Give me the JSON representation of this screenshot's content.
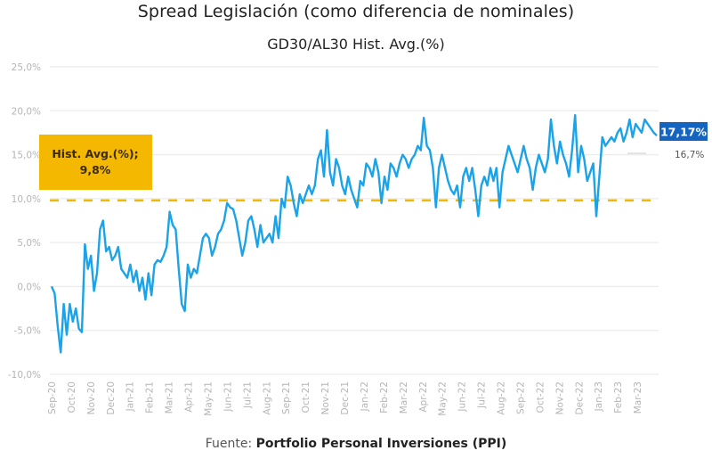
{
  "chart_data": {
    "type": "line",
    "title": "Spread Legislación (como diferencia de nominales)",
    "subtitle": "GD30/AL30 Hist. Avg.(%)",
    "source_prefix": "Fuente: ",
    "source_name": "Portfolio Personal Inversiones (PPI)",
    "xlabel": "",
    "ylabel": "",
    "ylim": [
      -10,
      25
    ],
    "yticks": [
      -10,
      -5,
      0,
      5,
      10,
      15,
      20,
      25
    ],
    "ytick_labels": [
      "-10,0%",
      "-5,0%",
      "0,0%",
      "5,0%",
      "10,0%",
      "15,0%",
      "20,0%",
      "25,0%"
    ],
    "grid": true,
    "x_categories": [
      "Sep-20",
      "Oct-20",
      "Nov-20",
      "Dec-20",
      "Jan-21",
      "Feb-21",
      "Mar-21",
      "Apr-21",
      "May-21",
      "Jun-21",
      "Jul-21",
      "Aug-21",
      "Sep-21",
      "Oct-21",
      "Nov-21",
      "Dec-21",
      "Jan-22",
      "Feb-22",
      "Mar-22",
      "Apr-22",
      "May-22",
      "Jun-22",
      "Jul-22",
      "Aug-22",
      "Sep-22",
      "Oct-22",
      "Nov-22",
      "Dec-22",
      "Jan-23",
      "Feb-23",
      "Mar-23"
    ],
    "series": [
      {
        "name": "GD30/AL30 Spread (%)",
        "color": "#1aa3e8",
        "values": [
          0.0,
          -0.8,
          -4.5,
          -7.5,
          -2.0,
          -5.5,
          -2.0,
          -4.0,
          -2.5,
          -4.8,
          -5.2,
          4.8,
          2.0,
          3.5,
          -0.5,
          1.5,
          6.5,
          7.5,
          4.0,
          4.5,
          3.0,
          3.5,
          4.5,
          2.0,
          1.5,
          1.0,
          2.5,
          0.5,
          1.8,
          -0.5,
          1.0,
          -1.5,
          1.5,
          -1.0,
          2.5,
          3.0,
          2.8,
          3.5,
          4.5,
          8.5,
          7.0,
          6.5,
          2.0,
          -2.0,
          -2.8,
          2.5,
          1.0,
          2.0,
          1.5,
          3.5,
          5.5,
          6.0,
          5.5,
          3.5,
          4.5,
          6.0,
          6.5,
          7.5,
          9.5,
          9.0,
          8.8,
          7.5,
          5.5,
          3.5,
          5.0,
          7.5,
          8.0,
          6.5,
          4.5,
          7.0,
          5.0,
          5.5,
          6.0,
          5.0,
          8.0,
          5.5,
          10.0,
          9.0,
          12.5,
          11.5,
          9.5,
          8.0,
          10.5,
          9.5,
          10.5,
          11.5,
          10.5,
          11.5,
          14.5,
          15.5,
          12.5,
          17.8,
          13.0,
          11.5,
          14.5,
          13.5,
          11.5,
          10.5,
          12.5,
          11.0,
          10.0,
          9.0,
          12.0,
          11.5,
          14.0,
          13.5,
          12.5,
          14.5,
          13.0,
          9.5,
          12.5,
          11.0,
          14.0,
          13.5,
          12.5,
          14.0,
          15.0,
          14.5,
          13.5,
          14.5,
          15.0,
          16.0,
          15.5,
          19.2,
          16.0,
          15.5,
          13.5,
          9.0,
          13.5,
          15.0,
          13.5,
          12.0,
          11.0,
          10.5,
          11.5,
          9.0,
          12.5,
          13.5,
          12.0,
          13.5,
          11.0,
          8.0,
          11.5,
          12.5,
          11.5,
          13.5,
          12.0,
          13.5,
          9.0,
          13.0,
          14.5,
          16.0,
          15.0,
          14.0,
          13.0,
          14.5,
          16.0,
          14.5,
          13.5,
          11.0,
          13.5,
          15.0,
          14.0,
          13.0,
          14.5,
          19.0,
          16.0,
          14.0,
          16.5,
          15.0,
          14.0,
          12.5,
          15.5,
          19.5,
          13.0,
          16.0,
          14.5,
          12.0,
          13.0,
          14.0,
          8.0,
          12.5,
          17.0,
          16.0,
          16.5,
          17.0,
          16.5,
          17.5,
          18.0,
          16.5,
          17.5,
          19.0,
          17.0,
          18.5,
          18.0,
          17.5,
          19.0,
          18.5,
          18.0,
          17.5,
          17.17
        ]
      }
    ],
    "reference_line": {
      "label": "Hist. Avg.(%);",
      "value_label": "9,8%",
      "value": 9.8,
      "color": "#f5b800",
      "style": "dashed"
    },
    "annotations": [
      {
        "text": "17,17%",
        "value": 17.17,
        "kind": "last-value",
        "background": "#1565c0"
      },
      {
        "text": "16,7%",
        "value": 16.7,
        "kind": "previous-value"
      }
    ],
    "legend": "none"
  }
}
